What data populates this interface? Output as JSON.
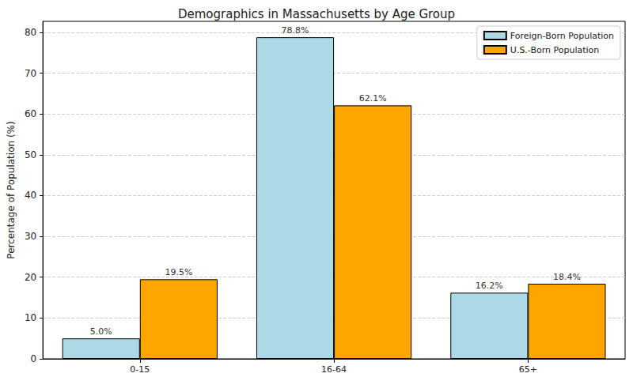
{
  "chart_data": {
    "type": "bar",
    "title": "Demographics in Massachusetts by Age Group",
    "ylabel": "Percentage of Population (%)",
    "categories": [
      "0-15",
      "16-64",
      "65+"
    ],
    "series": [
      {
        "name": "Foreign-Born Population",
        "color": "#add8e6",
        "values": [
          5.0,
          78.8,
          16.2
        ],
        "value_labels": [
          "5.0%",
          "78.8%",
          "16.2%"
        ]
      },
      {
        "name": "U.S.-Born Population",
        "color": "#ffa500",
        "values": [
          19.5,
          62.1,
          18.4
        ],
        "value_labels": [
          "19.5%",
          "62.1%",
          "18.4%"
        ]
      }
    ],
    "ylim": [
      0,
      82.7
    ],
    "yticks": [
      0,
      10,
      20,
      30,
      40,
      50,
      60,
      70,
      80
    ],
    "grid": true,
    "legend": "upper right",
    "data_labels": true
  }
}
